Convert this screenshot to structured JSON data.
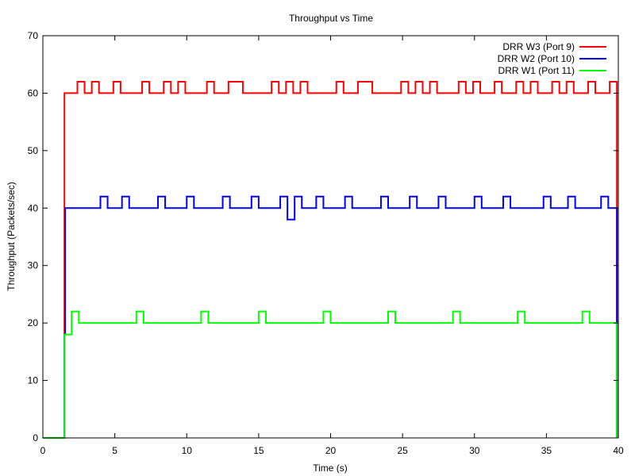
{
  "chart_data": {
    "type": "line",
    "title": "Throughput vs Time",
    "xlabel": "Time (s)",
    "ylabel": "Throughput (Packets/sec)",
    "xlim": [
      0,
      40
    ],
    "ylim": [
      0,
      70
    ],
    "xticks": [
      0,
      5,
      10,
      15,
      20,
      25,
      30,
      35,
      40
    ],
    "yticks": [
      0,
      10,
      20,
      30,
      40,
      50,
      60,
      70
    ],
    "grid": false,
    "legend_position": "top-right",
    "series": [
      {
        "name": "DRR W3 (Port 9)",
        "color": "#ff0000",
        "points": [
          [
            0,
            0
          ],
          [
            1.5,
            0
          ],
          [
            1.5,
            60
          ],
          [
            2.4,
            60
          ],
          [
            2.4,
            62
          ],
          [
            2.9,
            62
          ],
          [
            2.9,
            60
          ],
          [
            3.4,
            60
          ],
          [
            3.4,
            62
          ],
          [
            3.9,
            62
          ],
          [
            3.9,
            60
          ],
          [
            4.9,
            60
          ],
          [
            4.9,
            62
          ],
          [
            5.4,
            62
          ],
          [
            5.4,
            60
          ],
          [
            6.9,
            60
          ],
          [
            6.9,
            62
          ],
          [
            7.4,
            62
          ],
          [
            7.4,
            60
          ],
          [
            8.4,
            60
          ],
          [
            8.4,
            62
          ],
          [
            8.9,
            62
          ],
          [
            8.9,
            60
          ],
          [
            9.4,
            60
          ],
          [
            9.4,
            62
          ],
          [
            9.9,
            62
          ],
          [
            9.9,
            60
          ],
          [
            11.4,
            60
          ],
          [
            11.4,
            62
          ],
          [
            11.9,
            62
          ],
          [
            11.9,
            60
          ],
          [
            12.9,
            60
          ],
          [
            12.9,
            62
          ],
          [
            13.9,
            62
          ],
          [
            13.9,
            60
          ],
          [
            15.9,
            60
          ],
          [
            15.9,
            62
          ],
          [
            16.4,
            62
          ],
          [
            16.4,
            60
          ],
          [
            16.9,
            60
          ],
          [
            16.9,
            62
          ],
          [
            17.4,
            62
          ],
          [
            17.4,
            60
          ],
          [
            17.9,
            60
          ],
          [
            17.9,
            62
          ],
          [
            18.4,
            62
          ],
          [
            18.4,
            60
          ],
          [
            20.4,
            60
          ],
          [
            20.4,
            62
          ],
          [
            20.9,
            62
          ],
          [
            20.9,
            60
          ],
          [
            21.9,
            60
          ],
          [
            21.9,
            62
          ],
          [
            22.9,
            62
          ],
          [
            22.9,
            60
          ],
          [
            24.9,
            60
          ],
          [
            24.9,
            62
          ],
          [
            25.4,
            62
          ],
          [
            25.4,
            60
          ],
          [
            25.9,
            60
          ],
          [
            25.9,
            62
          ],
          [
            26.4,
            62
          ],
          [
            26.4,
            60
          ],
          [
            26.9,
            60
          ],
          [
            26.9,
            62
          ],
          [
            27.4,
            62
          ],
          [
            27.4,
            60
          ],
          [
            28.9,
            60
          ],
          [
            28.9,
            62
          ],
          [
            29.4,
            62
          ],
          [
            29.4,
            60
          ],
          [
            29.9,
            60
          ],
          [
            29.9,
            62
          ],
          [
            30.4,
            62
          ],
          [
            30.4,
            60
          ],
          [
            31.4,
            60
          ],
          [
            31.4,
            62
          ],
          [
            31.9,
            62
          ],
          [
            31.9,
            60
          ],
          [
            32.9,
            60
          ],
          [
            32.9,
            62
          ],
          [
            33.4,
            62
          ],
          [
            33.4,
            60
          ],
          [
            33.9,
            60
          ],
          [
            33.9,
            62
          ],
          [
            34.4,
            62
          ],
          [
            34.4,
            60
          ],
          [
            35.4,
            60
          ],
          [
            35.4,
            62
          ],
          [
            35.9,
            62
          ],
          [
            35.9,
            60
          ],
          [
            36.4,
            60
          ],
          [
            36.4,
            62
          ],
          [
            36.9,
            62
          ],
          [
            36.9,
            60
          ],
          [
            37.9,
            60
          ],
          [
            37.9,
            62
          ],
          [
            38.4,
            62
          ],
          [
            38.4,
            60
          ],
          [
            39.4,
            60
          ],
          [
            39.4,
            62
          ],
          [
            39.9,
            62
          ],
          [
            39.9,
            0
          ]
        ]
      },
      {
        "name": "DRR W2 (Port 10)",
        "color": "#0000ff",
        "points": [
          [
            0,
            0
          ],
          [
            1.5,
            0
          ],
          [
            1.5,
            18
          ],
          [
            1.55,
            18
          ],
          [
            1.55,
            40
          ],
          [
            4,
            40
          ],
          [
            4,
            42
          ],
          [
            4.5,
            42
          ],
          [
            4.5,
            40
          ],
          [
            5.5,
            40
          ],
          [
            5.5,
            42
          ],
          [
            6,
            42
          ],
          [
            6,
            40
          ],
          [
            8,
            40
          ],
          [
            8,
            42
          ],
          [
            8.5,
            42
          ],
          [
            8.5,
            40
          ],
          [
            10,
            40
          ],
          [
            10,
            42
          ],
          [
            10.5,
            42
          ],
          [
            10.5,
            40
          ],
          [
            12.5,
            40
          ],
          [
            12.5,
            42
          ],
          [
            13,
            42
          ],
          [
            13,
            40
          ],
          [
            14.5,
            40
          ],
          [
            14.5,
            42
          ],
          [
            15,
            42
          ],
          [
            15,
            40
          ],
          [
            16.5,
            40
          ],
          [
            16.5,
            42
          ],
          [
            17,
            42
          ],
          [
            17,
            38
          ],
          [
            17.5,
            38
          ],
          [
            17.5,
            42
          ],
          [
            18,
            42
          ],
          [
            18,
            40
          ],
          [
            19,
            40
          ],
          [
            19,
            42
          ],
          [
            19.5,
            42
          ],
          [
            19.5,
            40
          ],
          [
            21,
            40
          ],
          [
            21,
            42
          ],
          [
            21.5,
            42
          ],
          [
            21.5,
            40
          ],
          [
            23.5,
            40
          ],
          [
            23.5,
            42
          ],
          [
            24,
            42
          ],
          [
            24,
            40
          ],
          [
            25.5,
            40
          ],
          [
            25.5,
            42
          ],
          [
            26,
            42
          ],
          [
            26,
            40
          ],
          [
            27.5,
            40
          ],
          [
            27.5,
            42
          ],
          [
            28,
            42
          ],
          [
            28,
            40
          ],
          [
            30,
            40
          ],
          [
            30,
            42
          ],
          [
            30.5,
            42
          ],
          [
            30.5,
            40
          ],
          [
            32,
            40
          ],
          [
            32,
            42
          ],
          [
            32.5,
            42
          ],
          [
            32.5,
            40
          ],
          [
            34.8,
            40
          ],
          [
            34.8,
            42
          ],
          [
            35.3,
            42
          ],
          [
            35.3,
            40
          ],
          [
            36.5,
            40
          ],
          [
            36.5,
            42
          ],
          [
            37,
            42
          ],
          [
            37,
            40
          ],
          [
            38.8,
            40
          ],
          [
            38.8,
            42
          ],
          [
            39.3,
            42
          ],
          [
            39.3,
            40
          ],
          [
            39.9,
            40
          ],
          [
            39.9,
            0
          ]
        ]
      },
      {
        "name": "DRR W1 (Port 11)",
        "color": "#00ff00",
        "points": [
          [
            0,
            0
          ],
          [
            1.5,
            0
          ],
          [
            1.5,
            18
          ],
          [
            2,
            18
          ],
          [
            2,
            22
          ],
          [
            2.5,
            22
          ],
          [
            2.5,
            20
          ],
          [
            6.5,
            20
          ],
          [
            6.5,
            22
          ],
          [
            7,
            22
          ],
          [
            7,
            20
          ],
          [
            11,
            20
          ],
          [
            11,
            22
          ],
          [
            11.5,
            22
          ],
          [
            11.5,
            20
          ],
          [
            15,
            20
          ],
          [
            15,
            22
          ],
          [
            15.5,
            22
          ],
          [
            15.5,
            20
          ],
          [
            19.5,
            20
          ],
          [
            19.5,
            22
          ],
          [
            20,
            22
          ],
          [
            20,
            20
          ],
          [
            24,
            20
          ],
          [
            24,
            22
          ],
          [
            24.5,
            22
          ],
          [
            24.5,
            20
          ],
          [
            28.5,
            20
          ],
          [
            28.5,
            22
          ],
          [
            29,
            22
          ],
          [
            29,
            20
          ],
          [
            33,
            20
          ],
          [
            33,
            22
          ],
          [
            33.5,
            22
          ],
          [
            33.5,
            20
          ],
          [
            37.5,
            20
          ],
          [
            37.5,
            22
          ],
          [
            38,
            22
          ],
          [
            38,
            20
          ],
          [
            39.9,
            20
          ],
          [
            39.9,
            0
          ]
        ]
      }
    ]
  }
}
